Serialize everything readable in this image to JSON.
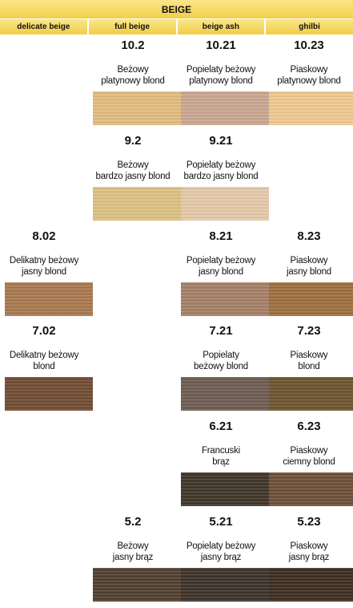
{
  "title": "BEIGE",
  "columns": [
    "delicate beige",
    "full beige",
    "beige ash",
    "ghilbi"
  ],
  "shades": [
    {
      "code": "10.2",
      "name": "Beżowy\nplatynowy blond",
      "color": "#e3bc7e"
    },
    {
      "code": "10.21",
      "name": "Popielaty beżowy\nplatynowy blond",
      "color": "#c9a690"
    },
    {
      "code": "10.23",
      "name": "Piaskowy\nplatynowy blond",
      "color": "#f0c88e"
    },
    {
      "code": "9.2",
      "name": "Beżowy\nbardzo jasny blond",
      "color": "#ddc082"
    },
    {
      "code": "9.21",
      "name": "Popielaty beżowy\nbardzo jasny blond",
      "color": "#e5c9a8"
    },
    {
      "code": "8.02",
      "name": "Delikatny beżowy\njasny blond",
      "color": "#a8774d"
    },
    {
      "code": "8.21",
      "name": "Popielaty beżowy\njasny blond",
      "color": "#a47e64"
    },
    {
      "code": "8.23",
      "name": "Piaskowy\njasny blond",
      "color": "#9d6d3d"
    },
    {
      "code": "7.02",
      "name": "Delikatny beżowy\nblond",
      "color": "#6f4a30"
    },
    {
      "code": "7.21",
      "name": "Popielaty\nbeżowy blond",
      "color": "#6c5a4f"
    },
    {
      "code": "7.23",
      "name": "Piaskowy\nblond",
      "color": "#6b522b"
    },
    {
      "code": "6.21",
      "name": "Francuski\nbrąz",
      "color": "#3e3227"
    },
    {
      "code": "6.23",
      "name": "Piaskowy\nciemny blond",
      "color": "#6b4d36"
    },
    {
      "code": "5.2",
      "name": "Beżowy\njasny brąz",
      "color": "#4f3d2d"
    },
    {
      "code": "5.21",
      "name": "Popielaty beżowy\njasny brąz",
      "color": "#3a3028"
    },
    {
      "code": "5.23",
      "name": "Piaskowy\njasny brąz",
      "color": "#3a2a1e"
    }
  ]
}
